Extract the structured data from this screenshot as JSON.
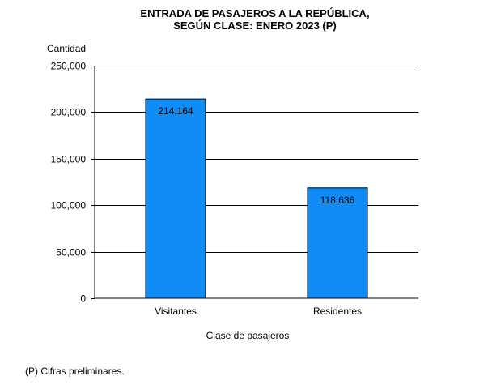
{
  "chart_data": {
    "type": "bar",
    "title_line1": "ENTRADA  DE PASAJEROS  A LA REPÚBLICA,",
    "title_line2": "SEGÚN CLASE:  ENERO  2023 (P)",
    "ylabel": "Cantidad",
    "xlabel": "Clase de pasajeros",
    "categories": [
      "Visitantes",
      "Residentes"
    ],
    "values": [
      214164,
      118636
    ],
    "data_labels": [
      "214,164",
      "118,636"
    ],
    "ylim": [
      0,
      250000
    ],
    "yticks": [
      0,
      50000,
      100000,
      150000,
      200000,
      250000
    ],
    "ytick_labels": [
      "0",
      "50,000",
      "100,000",
      "150,000",
      "200,000",
      "250,000"
    ],
    "grid": true,
    "bar_color": "#0f8cf5"
  },
  "footnote": "(P) Cifras  preliminares."
}
